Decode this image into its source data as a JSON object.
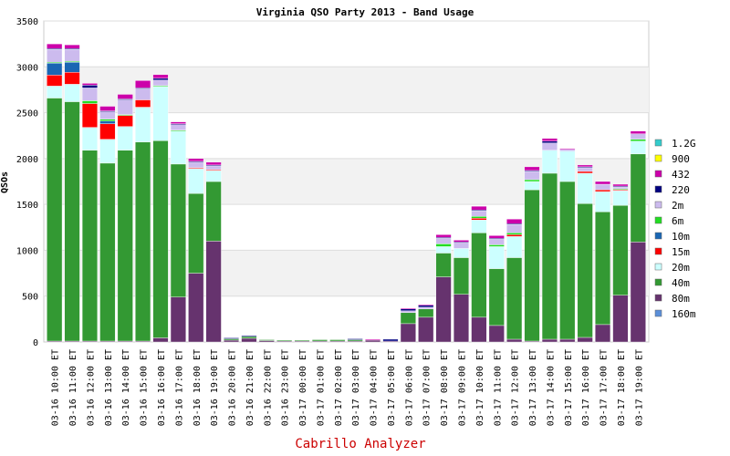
{
  "chart_data": {
    "type": "bar",
    "stacked": true,
    "title": "Virginia QSO Party 2013 - Band Usage",
    "xlabel": "",
    "ylabel": "QSOs",
    "ylim": [
      0,
      3500
    ],
    "yticks": [
      0,
      500,
      1000,
      1500,
      2000,
      2500,
      3000,
      3500
    ],
    "grid": true,
    "legend_position": "right",
    "footer": "Cabrillo Analyzer",
    "categories": [
      "03-16 10:00 ET",
      "03-16 11:00 ET",
      "03-16 12:00 ET",
      "03-16 13:00 ET",
      "03-16 14:00 ET",
      "03-16 15:00 ET",
      "03-16 16:00 ET",
      "03-16 17:00 ET",
      "03-16 18:00 ET",
      "03-16 19:00 ET",
      "03-16 20:00 ET",
      "03-16 21:00 ET",
      "03-16 22:00 ET",
      "03-16 23:00 ET",
      "03-17 00:00 ET",
      "03-17 01:00 ET",
      "03-17 02:00 ET",
      "03-17 03:00 ET",
      "03-17 04:00 ET",
      "03-17 05:00 ET",
      "03-17 06:00 ET",
      "03-17 07:00 ET",
      "03-17 08:00 ET",
      "03-17 09:00 ET",
      "03-17 10:00 ET",
      "03-17 11:00 ET",
      "03-17 12:00 ET",
      "03-17 13:00 ET",
      "03-17 14:00 ET",
      "03-17 15:00 ET",
      "03-17 16:00 ET",
      "03-17 17:00 ET",
      "03-17 18:00 ET",
      "03-17 19:00 ET"
    ],
    "series": [
      {
        "name": "160m",
        "color": "#5b8fd9",
        "values": [
          0,
          0,
          0,
          0,
          0,
          0,
          0,
          0,
          0,
          0,
          0,
          0,
          0,
          0,
          0,
          0,
          0,
          0,
          0,
          0,
          0,
          0,
          0,
          0,
          0,
          0,
          0,
          0,
          0,
          0,
          0,
          0,
          0,
          0
        ]
      },
      {
        "name": "80m",
        "color": "#66336e",
        "values": [
          10,
          10,
          10,
          10,
          10,
          10,
          45,
          490,
          750,
          1100,
          20,
          40,
          15,
          10,
          10,
          10,
          10,
          10,
          20,
          10,
          200,
          270,
          710,
          520,
          270,
          180,
          30,
          10,
          30,
          30,
          50,
          190,
          510,
          1090
        ]
      },
      {
        "name": "40m",
        "color": "#339933",
        "values": [
          2650,
          2610,
          2080,
          1940,
          2080,
          2170,
          2150,
          1450,
          870,
          650,
          15,
          20,
          10,
          10,
          10,
          15,
          15,
          15,
          0,
          0,
          120,
          90,
          260,
          400,
          920,
          620,
          890,
          1650,
          1810,
          1720,
          1460,
          1230,
          980,
          960
        ]
      },
      {
        "name": "20m",
        "color": "#ccffff",
        "values": [
          130,
          190,
          250,
          260,
          260,
          380,
          590,
          360,
          270,
          120,
          0,
          0,
          0,
          0,
          0,
          0,
          0,
          0,
          0,
          0,
          0,
          0,
          70,
          100,
          140,
          240,
          230,
          90,
          250,
          330,
          330,
          220,
          160,
          140
        ]
      },
      {
        "name": "15m",
        "color": "#ff0000",
        "values": [
          120,
          130,
          260,
          170,
          120,
          80,
          0,
          0,
          10,
          10,
          0,
          0,
          0,
          0,
          0,
          0,
          0,
          0,
          0,
          0,
          0,
          0,
          0,
          0,
          20,
          0,
          20,
          0,
          0,
          0,
          20,
          20,
          10,
          0
        ]
      },
      {
        "name": "10m",
        "color": "#1a66b3",
        "values": [
          130,
          110,
          0,
          30,
          0,
          0,
          0,
          0,
          0,
          0,
          0,
          0,
          0,
          0,
          0,
          0,
          0,
          0,
          0,
          0,
          0,
          0,
          0,
          0,
          0,
          0,
          0,
          0,
          0,
          0,
          0,
          0,
          0,
          0
        ]
      },
      {
        "name": "6m",
        "color": "#22dd22",
        "values": [
          10,
          10,
          30,
          20,
          10,
          0,
          10,
          10,
          0,
          0,
          0,
          0,
          0,
          0,
          0,
          0,
          0,
          0,
          0,
          0,
          0,
          0,
          30,
          0,
          20,
          20,
          20,
          20,
          0,
          0,
          0,
          0,
          10,
          20
        ]
      },
      {
        "name": "2m",
        "color": "#ccbbee",
        "values": [
          140,
          130,
          140,
          80,
          160,
          120,
          60,
          60,
          60,
          40,
          0,
          0,
          0,
          0,
          0,
          0,
          0,
          0,
          0,
          0,
          20,
          20,
          60,
          60,
          60,
          60,
          90,
          90,
          80,
          20,
          40,
          60,
          20,
          60
        ]
      },
      {
        "name": "220",
        "color": "#000080",
        "values": [
          10,
          10,
          30,
          10,
          10,
          10,
          20,
          10,
          10,
          10,
          10,
          10,
          0,
          0,
          0,
          0,
          0,
          10,
          0,
          20,
          20,
          20,
          10,
          10,
          10,
          10,
          10,
          10,
          20,
          0,
          10,
          0,
          10,
          0
        ]
      },
      {
        "name": "432",
        "color": "#cc00aa",
        "values": [
          50,
          40,
          20,
          50,
          50,
          80,
          40,
          20,
          30,
          30,
          0,
          0,
          0,
          0,
          0,
          0,
          0,
          0,
          10,
          0,
          10,
          10,
          30,
          20,
          40,
          30,
          50,
          40,
          30,
          10,
          20,
          30,
          20,
          30
        ]
      },
      {
        "name": "900",
        "color": "#ffff00",
        "values": [
          0,
          0,
          0,
          0,
          0,
          0,
          0,
          0,
          0,
          0,
          0,
          0,
          0,
          0,
          0,
          0,
          0,
          0,
          0,
          0,
          0,
          0,
          0,
          0,
          0,
          0,
          0,
          0,
          0,
          0,
          0,
          0,
          0,
          0
        ]
      },
      {
        "name": "1.2G",
        "color": "#33cccc",
        "values": [
          0,
          0,
          0,
          0,
          0,
          0,
          0,
          0,
          0,
          0,
          0,
          0,
          0,
          0,
          0,
          0,
          0,
          0,
          0,
          0,
          0,
          0,
          0,
          0,
          0,
          0,
          0,
          0,
          0,
          0,
          0,
          0,
          0,
          0
        ]
      }
    ]
  }
}
